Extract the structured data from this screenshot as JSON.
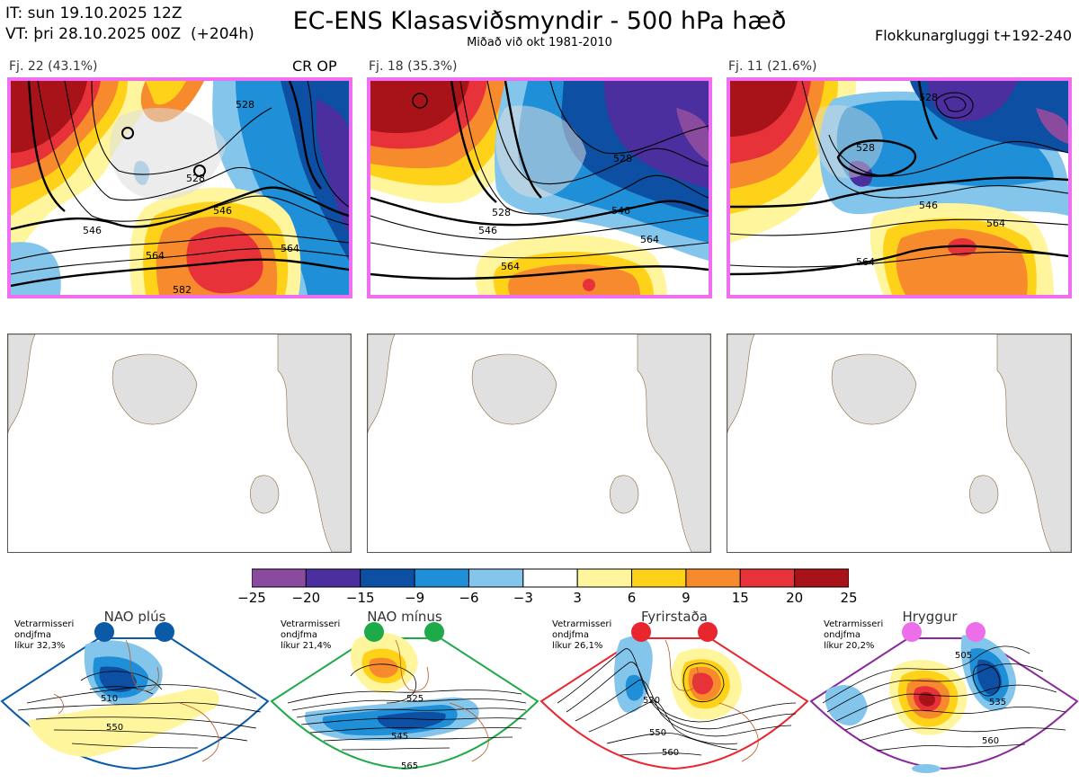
{
  "header": {
    "it_line": "IT: sun 19.10.2025 12Z",
    "vt_line": "VT: þri 28.10.2025 00Z  (+204h)",
    "title": "EC-ENS Klasasviðsmyndir - 500 hPa hæð",
    "subtitle": "Miðað við okt 1981-2010",
    "window": "Flokkunargluggi t+192-240"
  },
  "clusters": [
    {
      "label": "Fj. 22 (43.1%)",
      "members": 22,
      "percent": 43.1,
      "highlight_color": "#f06ef0"
    },
    {
      "label": "Fj. 18 (35.3%)",
      "members": 18,
      "percent": 35.3,
      "highlight_color": "#f06ef0"
    },
    {
      "label": "Fj. 11 (21.6%)",
      "members": 11,
      "percent": 21.6,
      "highlight_color": "#f06ef0"
    }
  ],
  "crop_op_label": "CR OP",
  "contour_labels": {
    "cluster1": [
      "546",
      "564",
      "582",
      "528",
      "546",
      "564",
      "528"
    ],
    "cluster2": [
      "546",
      "528",
      "564",
      "546",
      "564",
      "528"
    ],
    "cluster3": [
      "528",
      "546",
      "564",
      "564",
      "528"
    ]
  },
  "chart_data": {
    "type": "heatmap",
    "title": "EC-ENS Klasasviðsmyndir - 500 hPa hæð",
    "variable": "500 hPa geopotential height anomaly",
    "colorbar": {
      "ticks": [
        "−25",
        "−20",
        "−15",
        "−9",
        "−6",
        "−3",
        "3",
        "6",
        "9",
        "15",
        "20",
        "25"
      ],
      "colors": [
        "#8a4a9e",
        "#4b2f9e",
        "#0d4fa3",
        "#1f8fd8",
        "#84c5ec",
        "#ffffff",
        "#fff59d",
        "#ffd21a",
        "#f78a2d",
        "#e8323a",
        "#a81319"
      ]
    }
  },
  "regimes": [
    {
      "name": "NAO plús",
      "note_line1": "Vetrarmisseri",
      "note_line2": "ondjfma",
      "note_line3": "líkur 32,3%",
      "color": "#0a5aa8",
      "label_a": "510",
      "label_b": "550"
    },
    {
      "name": "NAO mínus",
      "note_line1": "Vetrarmisseri",
      "note_line2": "ondjfma",
      "note_line3": "líkur 21,4%",
      "color": "#1faa4a",
      "label_a": "525",
      "label_b": "545",
      "label_c": "565"
    },
    {
      "name": "Fyrirstaða",
      "note_line1": "Vetrarmisseri",
      "note_line2": "ondjfma",
      "note_line3": "líkur 26,1%",
      "color": "#e8262e",
      "label_a": "520",
      "label_b": "550",
      "label_c": "560"
    },
    {
      "name": "Hryggur",
      "note_line1": "Vetrarmisseri",
      "note_line2": "ondjfma",
      "note_line3": "líkur 20,2%",
      "color": "#ec6ee8",
      "label_a": "505",
      "label_b": "535",
      "label_c": "560"
    }
  ]
}
